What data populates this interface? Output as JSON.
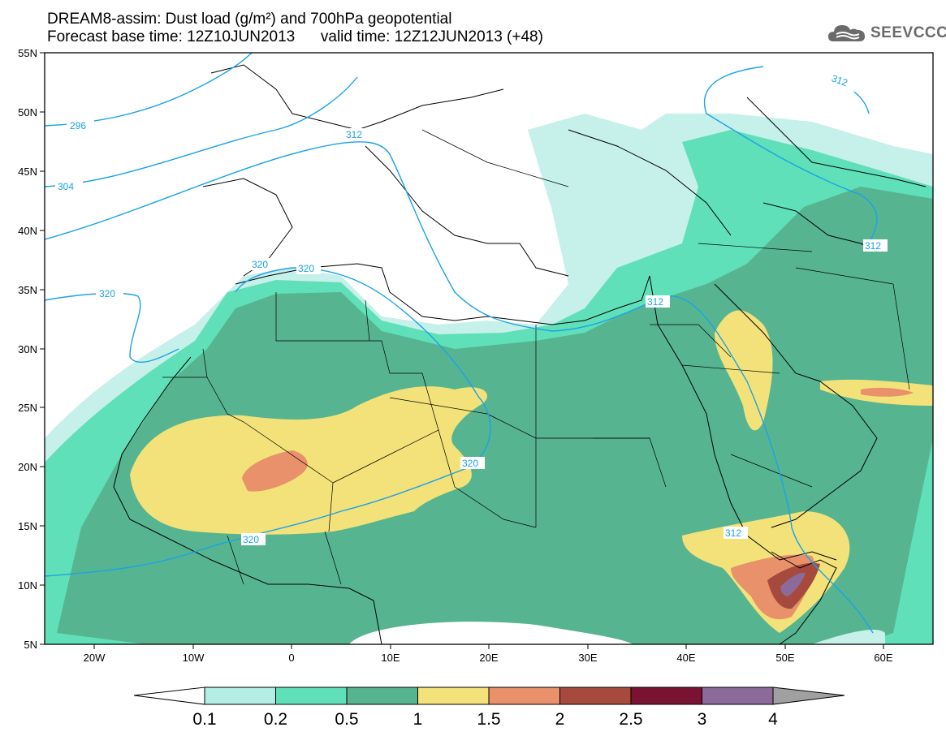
{
  "header": {
    "title_line1": "DREAM8-assim: Dust load (g/m²) and 700hPa geopotential",
    "title_line2": "Forecast base time: 12Z10JUN2013      valid time: 12Z12JUN2013 (+48)",
    "logo_text": "SEEVCCC"
  },
  "axes": {
    "lat_labels": [
      "55N",
      "50N",
      "45N",
      "40N",
      "35N",
      "30N",
      "25N",
      "20N",
      "15N",
      "10N",
      "5N"
    ],
    "lon_labels": [
      "20W",
      "10W",
      "0",
      "10E",
      "20E",
      "30E",
      "40E",
      "50E",
      "60E"
    ]
  },
  "contours": {
    "labels": [
      "296",
      "304",
      "312",
      "312",
      "312",
      "312",
      "312",
      "320",
      "320",
      "320",
      "320",
      "320"
    ]
  },
  "colorbar": {
    "tick_labels": [
      "0.1",
      "0.2",
      "0.5",
      "1",
      "1.5",
      "2",
      "2.5",
      "3",
      "4"
    ],
    "colors": [
      "#b3ede3",
      "#5fe0b8",
      "#56b491",
      "#f3e27a",
      "#e8916a",
      "#a64a3e",
      "#7a1232",
      "#8c6a9a"
    ],
    "extend_low_color": "#ffffff",
    "extend_high_color": "#a0a0a0"
  },
  "colors": {
    "contour_line": "#1aa3e8",
    "very_light": "#c6f0ea",
    "light": "#5fe0b8",
    "medium": "#56b491",
    "yellow": "#f3e27a",
    "orange": "#e8916a",
    "dark_red": "#a64a3e",
    "purple": "#8c6a9a"
  }
}
